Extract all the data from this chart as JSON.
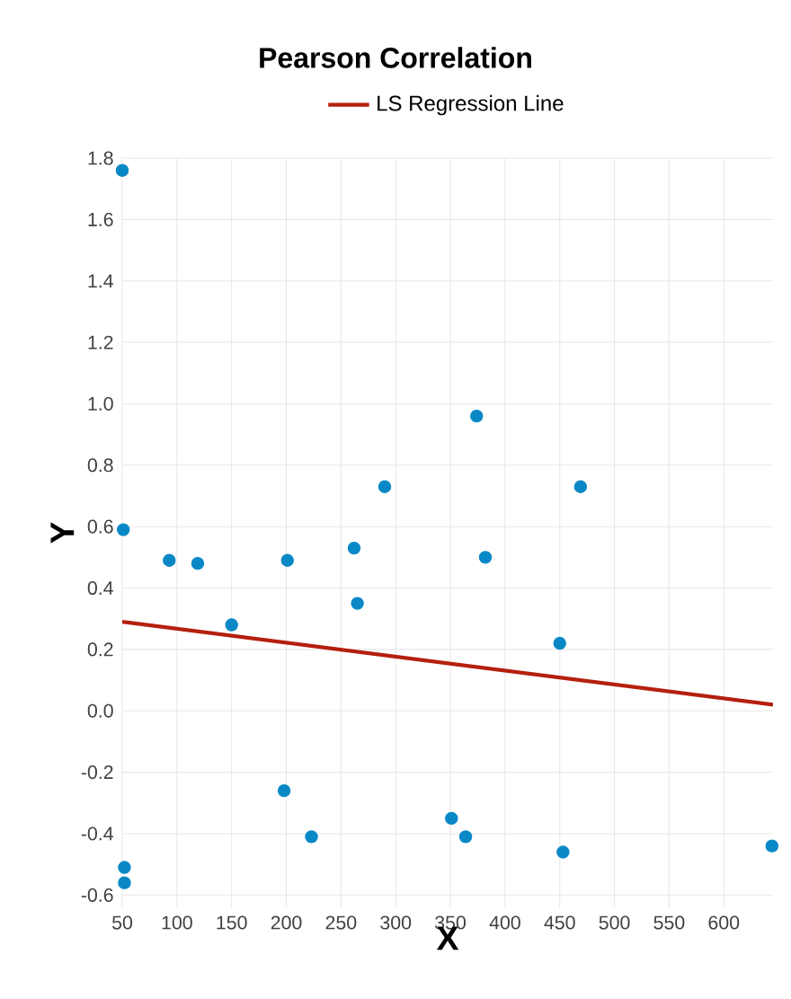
{
  "chart_data": {
    "type": "scatter",
    "title": "Pearson Correlation",
    "xlabel": "X",
    "ylabel": "Y",
    "xlim": [
      50,
      645
    ],
    "ylim": [
      -0.64,
      1.8
    ],
    "xticks": [
      50,
      100,
      150,
      200,
      250,
      300,
      350,
      400,
      450,
      500,
      550,
      600
    ],
    "yticks": [
      {
        "value": -0.6,
        "label": "-0.6"
      },
      {
        "value": -0.4,
        "label": "-0.4"
      },
      {
        "value": -0.2,
        "label": "-0.2"
      },
      {
        "value": 0,
        "label": "0.0"
      },
      {
        "value": 0.2,
        "label": "0.2"
      },
      {
        "value": 0.4,
        "label": "0.4"
      },
      {
        "value": 0.6,
        "label": "0.6"
      },
      {
        "value": 0.8,
        "label": "0.8"
      },
      {
        "value": 1.0,
        "label": "1.0"
      },
      {
        "value": 1.2,
        "label": "1.2"
      },
      {
        "value": 1.4,
        "label": "1.4"
      },
      {
        "value": 1.6,
        "label": "1.6"
      },
      {
        "value": 1.8,
        "label": "1.8"
      }
    ],
    "grid": true,
    "legend": "top",
    "series": [
      {
        "color": "#0a88c6",
        "marker": "circle",
        "x": [
          50,
          51,
          93,
          119,
          150,
          201,
          262,
          265,
          290,
          374,
          382,
          450,
          469,
          198,
          223,
          52,
          52,
          351,
          364,
          453,
          644
        ],
        "values": [
          1.76,
          0.59,
          0.49,
          0.48,
          0.28,
          0.49,
          0.53,
          0.35,
          0.73,
          0.96,
          0.5,
          0.22,
          0.73,
          -0.26,
          -0.41,
          -0.51,
          -0.56,
          -0.35,
          -0.41,
          -0.46,
          -0.44
        ]
      },
      {
        "type": "line",
        "name": "LS Regression Line",
        "color": "#b51f0e",
        "marker": "none",
        "x": [
          50,
          645
        ],
        "values": [
          0.29,
          0.02
        ]
      }
    ]
  }
}
